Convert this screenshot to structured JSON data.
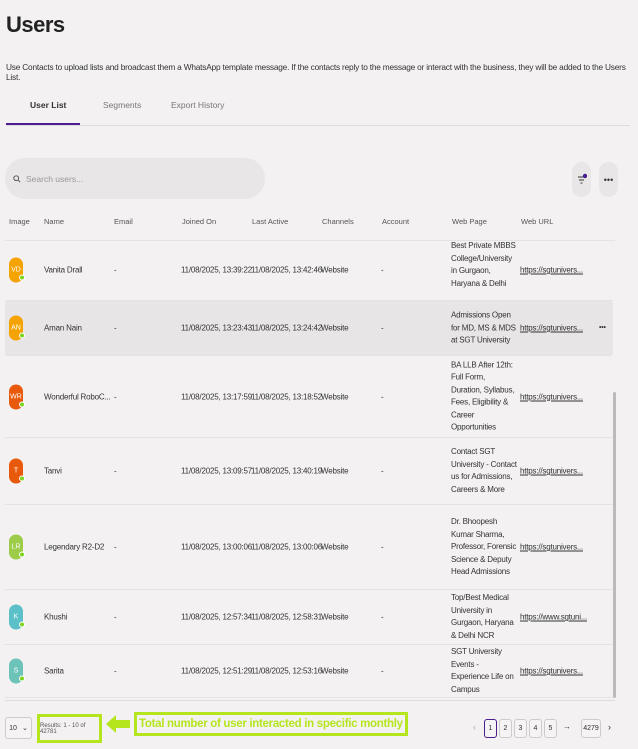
{
  "page": {
    "title": "Users",
    "description": "Use Contacts to upload lists and broadcast them a WhatsApp template message. If the contacts reply to the message or interact with the business, they will be added to the Users List."
  },
  "tabs": [
    {
      "label": "User List"
    },
    {
      "label": "Segments"
    },
    {
      "label": "Export History"
    }
  ],
  "search": {
    "placeholder": "Search users..."
  },
  "columns": [
    "Image",
    "Name",
    "Email",
    "Joined On",
    "Last Active",
    "Channels",
    "Account",
    "Web Page",
    "Web URL"
  ],
  "rows": [
    {
      "initials": "VD",
      "color": "#f5a300",
      "name": "Vanita Drall",
      "email": "-",
      "joined": "11/08/2025, 13:39:22",
      "last": "11/08/2025, 13:42:46",
      "channel": "Website",
      "account": "-",
      "webpage": "Best Private MBBS College/University in Gurgaon, Haryana & Delhi",
      "url": "https://sgtunivers..."
    },
    {
      "initials": "AN",
      "color": "#f5a300",
      "name": "Aman Nain",
      "email": "-",
      "joined": "11/08/2025, 13:23:43",
      "last": "11/08/2025, 13:24:42",
      "channel": "Website",
      "account": "-",
      "webpage": "Admissions Open for MD, MS & MDS at SGT University",
      "url": "https://sgtunivers..."
    },
    {
      "initials": "WR",
      "color": "#e8590c",
      "name": "Wonderful RoboC...",
      "email": "-",
      "joined": "11/08/2025, 13:17:59",
      "last": "11/08/2025, 13:18:52",
      "channel": "Website",
      "account": "-",
      "webpage": "BA LLB After 12th: Full Form, Duration, Syllabus, Fees, Eligibility & Career Opportunities",
      "url": "https://sgtunivers..."
    },
    {
      "initials": "T",
      "color": "#e8590c",
      "name": "Tanvi",
      "email": "-",
      "joined": "11/08/2025, 13:09:57",
      "last": "11/08/2025, 13:40:19",
      "channel": "Website",
      "account": "-",
      "webpage": "Contact SGT University - Contact us for Admissions, Careers & More",
      "url": "https://sgtunivers..."
    },
    {
      "initials": "LR",
      "color": "#9ccc48",
      "name": "Legendary R2-D2",
      "email": "-",
      "joined": "11/08/2025, 13:00:06",
      "last": "11/08/2025, 13:00:06",
      "channel": "Website",
      "account": "-",
      "webpage": "Dr. Bhoopesh Kumar Sharma, Professor, Forensic Science & Deputy Head Admissions",
      "url": "https://sgtunivers..."
    },
    {
      "initials": "K",
      "color": "#5bc0c8",
      "name": "Khushi",
      "email": "-",
      "joined": "11/08/2025, 12:57:34",
      "last": "11/08/2025, 12:58:31",
      "channel": "Website",
      "account": "-",
      "webpage": "Top/Best Medical University in Gurgaon, Haryana & Delhi NCR",
      "url": "https://www.sgtuni..."
    },
    {
      "initials": "S",
      "color": "#6cc4b8",
      "name": "Sarita",
      "email": "-",
      "joined": "11/08/2025, 12:51:29",
      "last": "11/08/2025, 12:53:16",
      "channel": "Website",
      "account": "-",
      "webpage": "SGT University Events - Experience Life on Campus",
      "url": "https://sgtunivers..."
    }
  ],
  "footer": {
    "page_size": "10",
    "results": "Results: 1 - 10 of 42781",
    "annotation": "Total number of user interacted in specific monthly",
    "pages": [
      "1",
      "2",
      "3",
      "4",
      "5"
    ],
    "last_page": "4279",
    "ellipsis": "→"
  },
  "colors": {
    "accent": "#4b1c8e",
    "highlight": "#b5e61d"
  }
}
